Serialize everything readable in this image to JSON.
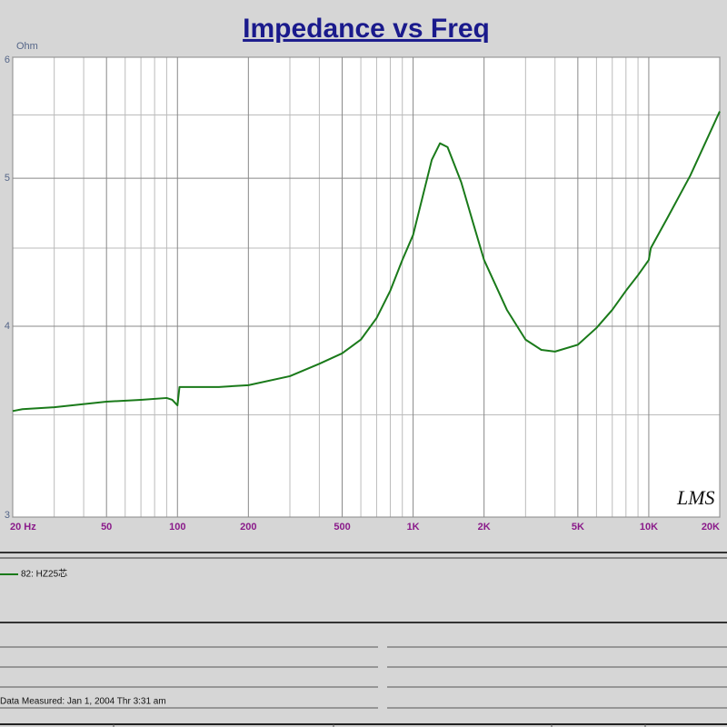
{
  "chart_data": {
    "type": "line",
    "title": "Impedance vs Freq",
    "y_label": "Ohm",
    "x": [
      20,
      22,
      30,
      50,
      70,
      90,
      95,
      100,
      102,
      150,
      200,
      300,
      400,
      500,
      600,
      700,
      800,
      900,
      1000,
      1100,
      1200,
      1300,
      1400,
      1600,
      1800,
      2000,
      2500,
      3000,
      3500,
      4000,
      5000,
      6000,
      7000,
      8000,
      9000,
      10000,
      10200,
      12000,
      15000,
      20000
    ],
    "series": [
      {
        "name": "82: HZ25芯",
        "color": "#1a7a1a",
        "values": [
          3.52,
          3.53,
          3.54,
          3.57,
          3.58,
          3.59,
          3.58,
          3.55,
          3.65,
          3.65,
          3.66,
          3.71,
          3.78,
          3.84,
          3.92,
          4.05,
          4.22,
          4.42,
          4.59,
          4.87,
          5.14,
          5.27,
          5.24,
          4.97,
          4.67,
          4.42,
          4.1,
          3.92,
          3.86,
          3.85,
          3.89,
          3.99,
          4.1,
          4.22,
          4.32,
          4.42,
          4.5,
          4.71,
          5.02,
          5.53
        ]
      }
    ],
    "xlim": [
      20,
      20000
    ],
    "ylim": [
      3,
      6
    ],
    "xscale": "log",
    "yscale": "log",
    "xticks": [
      {
        "value": 20,
        "label": "20  Hz"
      },
      50,
      100,
      200,
      500,
      {
        "value": 1000,
        "label": "1K"
      },
      {
        "value": 2000,
        "label": "2K"
      },
      {
        "value": 5000,
        "label": "5K"
      },
      {
        "value": 10000,
        "label": "10K"
      },
      {
        "value": 20000,
        "label": "20K"
      }
    ],
    "yticks": [
      3,
      4,
      5,
      6
    ],
    "x_minor_grid": [
      30,
      40,
      60,
      70,
      80,
      90,
      300,
      400,
      600,
      700,
      800,
      900,
      3000,
      4000,
      6000,
      7000,
      8000,
      9000
    ],
    "y_minor_grid": [
      3.5,
      4.5,
      5.5
    ],
    "grid": true,
    "legend": "bottom-left",
    "watermark": "LMS"
  },
  "footer": {
    "measured": "Data Measured: Jan  1, 2004  Thr  3:31 am"
  }
}
